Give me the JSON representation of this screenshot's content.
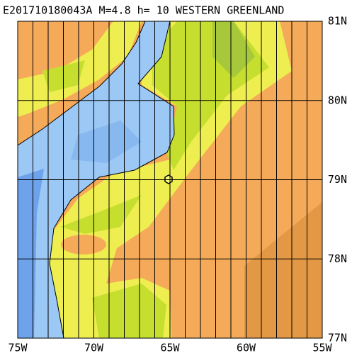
{
  "map": {
    "title": "E201710180043A M=4.8 h= 10 WESTERN GREENLAND",
    "lat_labels": [
      "81N",
      "80N",
      "79N",
      "78N",
      "77N"
    ],
    "lon_labels": [
      "75W",
      "70W",
      "65W",
      "60W",
      "55W"
    ]
  }
}
